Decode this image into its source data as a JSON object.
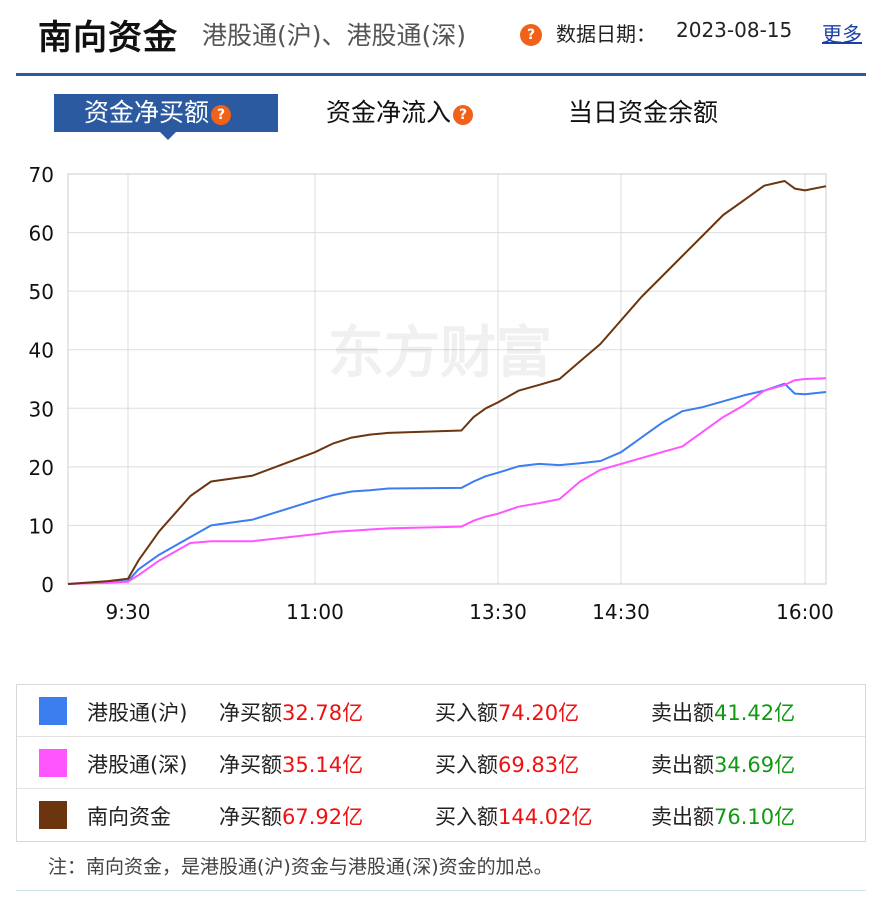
{
  "header": {
    "title": "南向资金",
    "subtitle": "港股通(沪)、港股通(深)",
    "date_label": "数据日期：",
    "date_value": "2023-08-15",
    "more_link": "更多"
  },
  "tabs": [
    {
      "label": "资金净买额",
      "active": true,
      "help_icon": "question-icon"
    },
    {
      "label": "资金净流入",
      "active": false,
      "help_icon": "question-icon"
    },
    {
      "label": "当日资金余额",
      "active": false
    }
  ],
  "watermark": "东方财富",
  "colors": {
    "accent": "#2c5aa0",
    "hk_sh": "#3a7ef0",
    "hk_sz": "#ff55ff",
    "south": "#6b3510",
    "positive": "#ee1111",
    "negative": "#119911",
    "help_icon": "#f0611a"
  },
  "chart_data": {
    "type": "line",
    "ylim": [
      0,
      70
    ],
    "yticks": [
      "0",
      "10",
      "20",
      "30",
      "40",
      "50",
      "60",
      "70"
    ],
    "xticks": [
      "9:30",
      "11:00",
      "13:30",
      "14:30",
      "16:00"
    ],
    "grid": true,
    "series": [
      {
        "name": "港股通(沪)",
        "color": "#3a7ef0",
        "x": [
          "9:00",
          "9:20",
          "9:30",
          "9:35",
          "9:45",
          "10:00",
          "10:10",
          "10:30",
          "11:00",
          "11:15",
          "11:30",
          "11:45",
          "12:00",
          "13:00",
          "13:10",
          "13:20",
          "13:30",
          "13:40",
          "13:50",
          "14:00",
          "14:10",
          "14:20",
          "14:30",
          "14:40",
          "14:50",
          "15:00",
          "15:10",
          "15:20",
          "15:30",
          "15:40",
          "15:50",
          "15:55",
          "16:00",
          "16:10"
        ],
        "values": [
          0,
          0.3,
          0.5,
          2.5,
          5,
          8,
          10,
          11,
          14.3,
          15.2,
          15.8,
          16,
          16.3,
          16.4,
          17.5,
          18.4,
          19,
          20.1,
          20.5,
          20.3,
          20.6,
          21,
          22.5,
          25,
          27.5,
          29.5,
          30.2,
          31.2,
          32.2,
          33,
          34.2,
          32.5,
          32.4,
          32.78
        ]
      },
      {
        "name": "港股通(深)",
        "color": "#ff55ff",
        "x": [
          "9:00",
          "9:20",
          "9:30",
          "9:35",
          "9:45",
          "10:00",
          "10:10",
          "10:30",
          "11:00",
          "11:15",
          "11:30",
          "11:45",
          "12:00",
          "13:00",
          "13:10",
          "13:20",
          "13:30",
          "13:40",
          "13:50",
          "14:00",
          "14:10",
          "14:20",
          "14:30",
          "14:40",
          "14:50",
          "15:00",
          "15:10",
          "15:20",
          "15:30",
          "15:40",
          "15:50",
          "15:55",
          "16:00",
          "16:10"
        ],
        "values": [
          0,
          0.2,
          0.4,
          1.5,
          4,
          7,
          7.3,
          7.3,
          8.5,
          8.9,
          9.1,
          9.3,
          9.5,
          9.8,
          10.8,
          11.5,
          12,
          13.2,
          13.8,
          14.5,
          17.5,
          19.5,
          20.5,
          21.5,
          22.5,
          23.5,
          26,
          28.5,
          30.5,
          33,
          34,
          34.8,
          35,
          35.14
        ]
      },
      {
        "name": "南向资金",
        "color": "#6b3510",
        "x": [
          "9:00",
          "9:20",
          "9:30",
          "9:35",
          "9:45",
          "10:00",
          "10:10",
          "10:30",
          "11:00",
          "11:15",
          "11:30",
          "11:45",
          "12:00",
          "13:00",
          "13:10",
          "13:20",
          "13:30",
          "13:40",
          "13:50",
          "14:00",
          "14:10",
          "14:20",
          "14:30",
          "14:40",
          "14:50",
          "15:00",
          "15:10",
          "15:20",
          "15:30",
          "15:40",
          "15:50",
          "15:55",
          "16:00",
          "16:10"
        ],
        "values": [
          0,
          0.5,
          0.9,
          4,
          9,
          15,
          17.5,
          18.5,
          22.5,
          24,
          25,
          25.5,
          25.8,
          26.2,
          28.5,
          30,
          31,
          33,
          34,
          35,
          38,
          41,
          45,
          49,
          52.5,
          56,
          59.5,
          63,
          65.5,
          68,
          68.8,
          67.5,
          67.2,
          67.92
        ]
      }
    ]
  },
  "legend": [
    {
      "name": "港股通(沪)",
      "color": "#3a7ef0",
      "net_label": "净买额",
      "net_value": "32.78亿",
      "buy_label": "买入额",
      "buy_value": "74.20亿",
      "sell_label": "卖出额",
      "sell_value": "41.42亿"
    },
    {
      "name": "港股通(深)",
      "color": "#ff55ff",
      "net_label": "净买额",
      "net_value": "35.14亿",
      "buy_label": "买入额",
      "buy_value": "69.83亿",
      "sell_label": "卖出额",
      "sell_value": "34.69亿"
    },
    {
      "name": "南向资金",
      "color": "#6b3510",
      "net_label": "净买额",
      "net_value": "67.92亿",
      "buy_label": "买入额",
      "buy_value": "144.02亿",
      "sell_label": "卖出额",
      "sell_value": "76.10亿"
    }
  ],
  "note": "注：南向资金，是港股通(沪)资金与港股通(深)资金的加总。"
}
